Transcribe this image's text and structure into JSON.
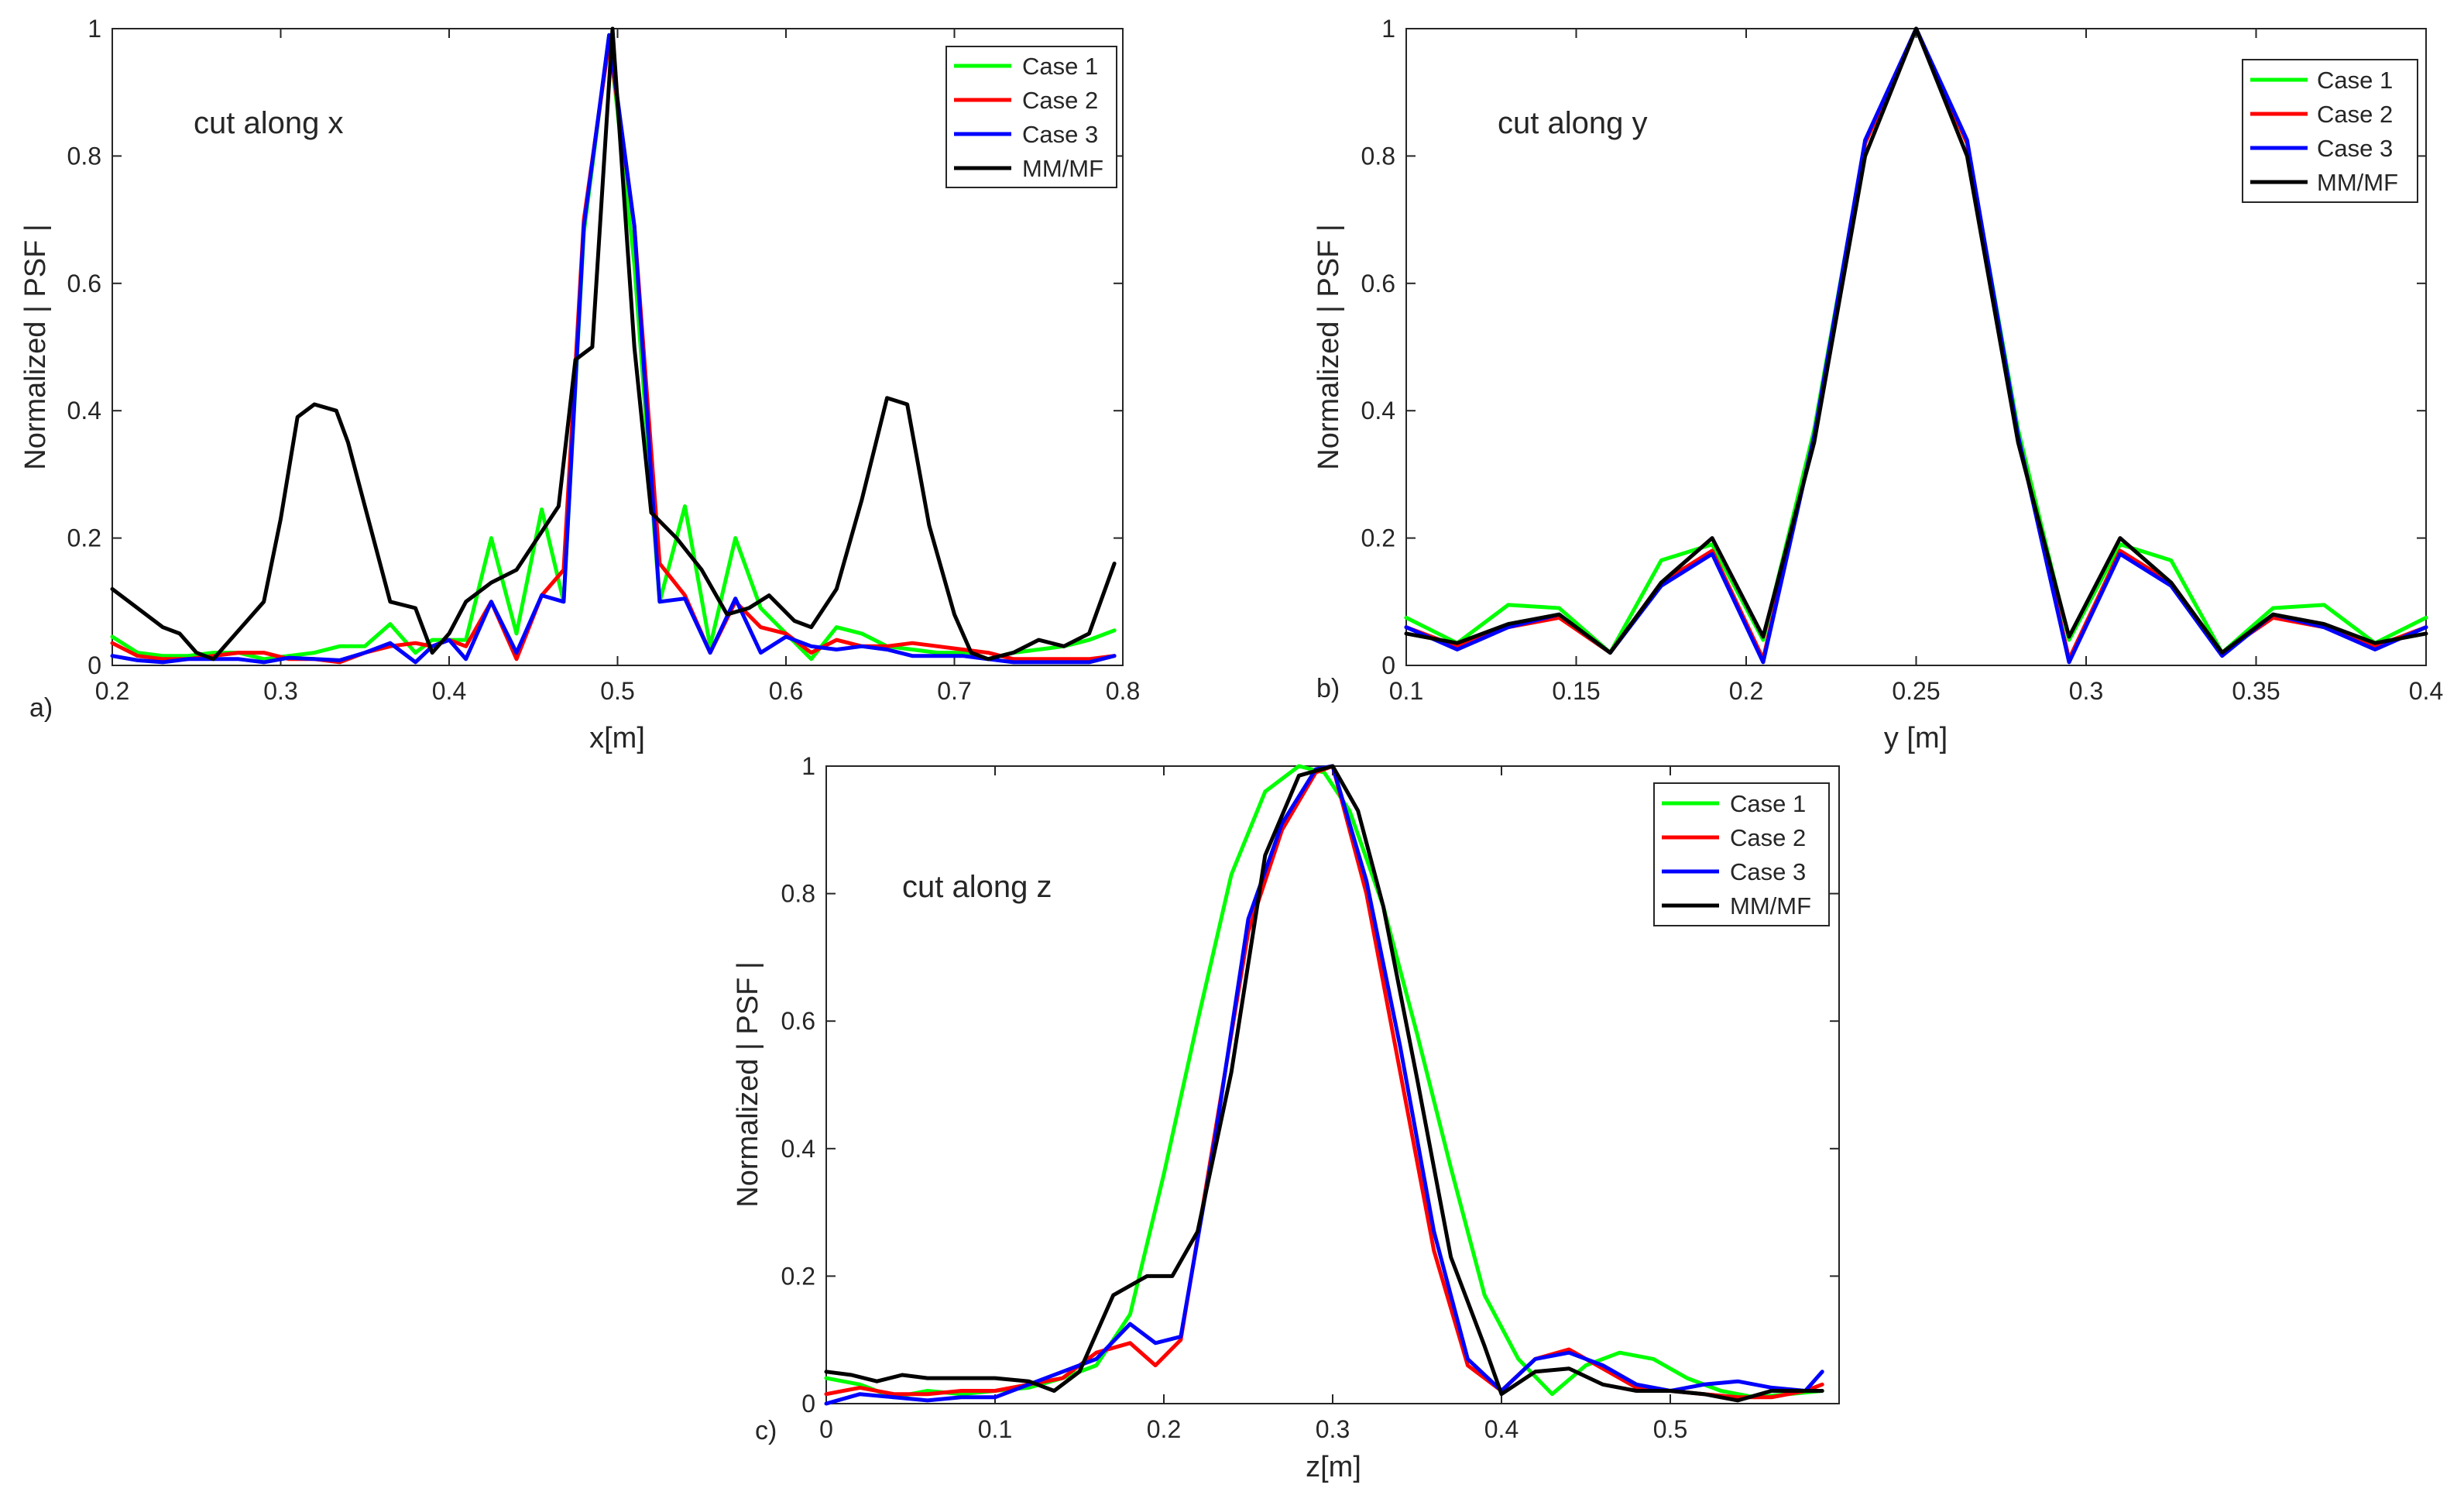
{
  "colors": {
    "case1": "#00ff00",
    "case2": "#ff0000",
    "case3": "#0000ff",
    "mmmf": "#000000"
  },
  "chart_data": [
    {
      "type": "line",
      "panel_label": "a)",
      "annotation": "cut along x",
      "xlabel": "x[m]",
      "ylabel": "Normalized | PSF |",
      "xlim": [
        0.2,
        0.8
      ],
      "ylim": [
        0,
        1
      ],
      "xticks": [
        0.2,
        0.3,
        0.4,
        0.5,
        0.6,
        0.7,
        0.8
      ],
      "xtick_labels": [
        "0.2",
        "0.3",
        "0.4",
        "0.5",
        "0.6",
        "0.7",
        "0.8"
      ],
      "yticks": [
        0,
        0.2,
        0.4,
        0.6,
        0.8,
        1
      ],
      "ytick_labels": [
        "0",
        "0.2",
        "0.4",
        "0.6",
        "0.8",
        "1"
      ],
      "legend": [
        "Case 1",
        "Case 2",
        "Case 3",
        "MM/MF"
      ],
      "series": [
        {
          "name": "Case 1",
          "color": "#00ff00",
          "x": [
            0.2,
            0.215,
            0.23,
            0.245,
            0.26,
            0.275,
            0.29,
            0.305,
            0.32,
            0.335,
            0.35,
            0.365,
            0.38,
            0.39,
            0.4,
            0.41,
            0.425,
            0.44,
            0.455,
            0.468,
            0.48,
            0.495,
            0.51,
            0.525,
            0.54,
            0.555,
            0.57,
            0.585,
            0.6,
            0.615,
            0.63,
            0.645,
            0.66,
            0.675,
            0.69,
            0.705,
            0.72,
            0.735,
            0.75,
            0.765,
            0.78,
            0.795
          ],
          "y": [
            0.045,
            0.02,
            0.015,
            0.015,
            0.02,
            0.02,
            0.01,
            0.015,
            0.02,
            0.03,
            0.03,
            0.065,
            0.02,
            0.04,
            0.04,
            0.04,
            0.2,
            0.05,
            0.245,
            0.1,
            0.68,
            0.99,
            0.63,
            0.1,
            0.25,
            0.03,
            0.2,
            0.09,
            0.05,
            0.01,
            0.06,
            0.05,
            0.03,
            0.025,
            0.02,
            0.02,
            0.01,
            0.02,
            0.025,
            0.03,
            0.04,
            0.055
          ]
        },
        {
          "name": "Case 2",
          "color": "#ff0000",
          "x": [
            0.2,
            0.215,
            0.23,
            0.245,
            0.26,
            0.275,
            0.29,
            0.305,
            0.32,
            0.335,
            0.35,
            0.365,
            0.38,
            0.39,
            0.4,
            0.41,
            0.425,
            0.44,
            0.455,
            0.468,
            0.48,
            0.495,
            0.51,
            0.525,
            0.54,
            0.555,
            0.57,
            0.585,
            0.6,
            0.615,
            0.63,
            0.645,
            0.66,
            0.675,
            0.69,
            0.705,
            0.72,
            0.735,
            0.75,
            0.765,
            0.78,
            0.795
          ],
          "y": [
            0.035,
            0.015,
            0.01,
            0.01,
            0.015,
            0.02,
            0.02,
            0.01,
            0.01,
            0.005,
            0.02,
            0.03,
            0.035,
            0.03,
            0.04,
            0.03,
            0.1,
            0.01,
            0.11,
            0.15,
            0.7,
            0.98,
            0.69,
            0.16,
            0.11,
            0.02,
            0.1,
            0.06,
            0.05,
            0.02,
            0.04,
            0.03,
            0.03,
            0.035,
            0.03,
            0.025,
            0.02,
            0.01,
            0.01,
            0.01,
            0.01,
            0.015
          ]
        },
        {
          "name": "Case 3",
          "color": "#0000ff",
          "x": [
            0.2,
            0.215,
            0.23,
            0.245,
            0.26,
            0.275,
            0.29,
            0.305,
            0.32,
            0.335,
            0.35,
            0.365,
            0.38,
            0.39,
            0.4,
            0.41,
            0.425,
            0.44,
            0.455,
            0.468,
            0.48,
            0.495,
            0.51,
            0.525,
            0.54,
            0.555,
            0.57,
            0.585,
            0.6,
            0.615,
            0.63,
            0.645,
            0.66,
            0.675,
            0.69,
            0.705,
            0.72,
            0.735,
            0.75,
            0.765,
            0.78,
            0.795
          ],
          "y": [
            0.015,
            0.008,
            0.005,
            0.01,
            0.01,
            0.01,
            0.005,
            0.012,
            0.01,
            0.008,
            0.02,
            0.035,
            0.005,
            0.03,
            0.04,
            0.01,
            0.1,
            0.02,
            0.11,
            0.1,
            0.69,
            0.99,
            0.69,
            0.1,
            0.105,
            0.02,
            0.105,
            0.02,
            0.045,
            0.03,
            0.025,
            0.03,
            0.025,
            0.015,
            0.015,
            0.015,
            0.01,
            0.005,
            0.005,
            0.005,
            0.005,
            0.015
          ]
        },
        {
          "name": "MM/MF",
          "color": "#000000",
          "x": [
            0.2,
            0.21,
            0.22,
            0.23,
            0.24,
            0.25,
            0.26,
            0.27,
            0.28,
            0.29,
            0.3,
            0.31,
            0.32,
            0.333,
            0.34,
            0.35,
            0.365,
            0.38,
            0.39,
            0.4,
            0.41,
            0.425,
            0.44,
            0.455,
            0.465,
            0.475,
            0.485,
            0.497,
            0.51,
            0.52,
            0.535,
            0.55,
            0.565,
            0.578,
            0.59,
            0.605,
            0.615,
            0.63,
            0.645,
            0.66,
            0.672,
            0.685,
            0.7,
            0.71,
            0.72,
            0.735,
            0.75,
            0.765,
            0.78,
            0.795
          ],
          "y": [
            0.12,
            0.1,
            0.08,
            0.06,
            0.05,
            0.02,
            0.01,
            0.04,
            0.07,
            0.1,
            0.23,
            0.39,
            0.41,
            0.4,
            0.35,
            0.25,
            0.1,
            0.09,
            0.02,
            0.05,
            0.1,
            0.13,
            0.15,
            0.21,
            0.25,
            0.48,
            0.5,
            1.0,
            0.5,
            0.24,
            0.2,
            0.15,
            0.08,
            0.09,
            0.11,
            0.07,
            0.06,
            0.12,
            0.26,
            0.42,
            0.41,
            0.22,
            0.08,
            0.02,
            0.01,
            0.02,
            0.04,
            0.03,
            0.05,
            0.16
          ]
        }
      ]
    },
    {
      "type": "line",
      "panel_label": "b)",
      "annotation": "cut along y",
      "xlabel": "y [m]",
      "ylabel": "Normalized | PSF |",
      "xlim": [
        0.1,
        0.4
      ],
      "ylim": [
        0,
        1
      ],
      "xticks": [
        0.1,
        0.15,
        0.2,
        0.25,
        0.3,
        0.35,
        0.4
      ],
      "xtick_labels": [
        "0.1",
        "0.15",
        "0.2",
        "0.25",
        "0.3",
        "0.35",
        "0.4"
      ],
      "yticks": [
        0,
        0.2,
        0.4,
        0.6,
        0.8,
        1
      ],
      "ytick_labels": [
        "0",
        "0.2",
        "0.4",
        "0.6",
        "0.8",
        "1"
      ],
      "legend": [
        "Case 1",
        "Case 2",
        "Case 3",
        "MM/MF"
      ],
      "series": [
        {
          "name": "Case 1",
          "color": "#00ff00",
          "x": [
            0.1,
            0.115,
            0.13,
            0.145,
            0.16,
            0.175,
            0.19,
            0.205,
            0.22,
            0.235,
            0.25,
            0.265,
            0.28,
            0.295,
            0.31,
            0.325,
            0.34,
            0.355,
            0.37,
            0.385,
            0.4
          ],
          "y": [
            0.075,
            0.035,
            0.095,
            0.09,
            0.02,
            0.165,
            0.19,
            0.04,
            0.37,
            0.82,
            1.0,
            0.82,
            0.37,
            0.04,
            0.19,
            0.165,
            0.02,
            0.09,
            0.095,
            0.035,
            0.075
          ]
        },
        {
          "name": "Case 2",
          "color": "#ff0000",
          "x": [
            0.1,
            0.115,
            0.13,
            0.145,
            0.16,
            0.175,
            0.19,
            0.205,
            0.22,
            0.235,
            0.25,
            0.265,
            0.28,
            0.295,
            0.31,
            0.325,
            0.34,
            0.355,
            0.37,
            0.385,
            0.4
          ],
          "y": [
            0.06,
            0.03,
            0.06,
            0.075,
            0.02,
            0.13,
            0.18,
            0.01,
            0.36,
            0.82,
            1.0,
            0.82,
            0.36,
            0.01,
            0.18,
            0.13,
            0.02,
            0.075,
            0.06,
            0.03,
            0.06
          ]
        },
        {
          "name": "Case 3",
          "color": "#0000ff",
          "x": [
            0.1,
            0.115,
            0.13,
            0.145,
            0.16,
            0.175,
            0.19,
            0.205,
            0.22,
            0.235,
            0.25,
            0.265,
            0.28,
            0.295,
            0.31,
            0.325,
            0.34,
            0.355,
            0.37,
            0.385,
            0.4
          ],
          "y": [
            0.06,
            0.025,
            0.06,
            0.08,
            0.02,
            0.125,
            0.175,
            0.005,
            0.36,
            0.825,
            1.0,
            0.825,
            0.36,
            0.005,
            0.175,
            0.125,
            0.015,
            0.08,
            0.06,
            0.025,
            0.06
          ]
        },
        {
          "name": "MM/MF",
          "color": "#000000",
          "x": [
            0.1,
            0.115,
            0.13,
            0.145,
            0.16,
            0.175,
            0.19,
            0.205,
            0.22,
            0.235,
            0.25,
            0.265,
            0.28,
            0.295,
            0.31,
            0.325,
            0.34,
            0.355,
            0.37,
            0.385,
            0.4
          ],
          "y": [
            0.05,
            0.035,
            0.065,
            0.08,
            0.02,
            0.13,
            0.2,
            0.045,
            0.35,
            0.8,
            1.0,
            0.8,
            0.35,
            0.045,
            0.2,
            0.13,
            0.02,
            0.08,
            0.065,
            0.035,
            0.05
          ]
        }
      ]
    },
    {
      "type": "line",
      "panel_label": "c)",
      "annotation": "cut along z",
      "xlabel": "z[m]",
      "ylabel": "Normalized | PSF |",
      "xlim": [
        0,
        0.6
      ],
      "ylim": [
        0,
        1
      ],
      "xticks": [
        0,
        0.1,
        0.2,
        0.3,
        0.4,
        0.5
      ],
      "xtick_labels": [
        "0",
        "0.1",
        "0.2",
        "0.3",
        "0.4",
        "0.5"
      ],
      "yticks": [
        0,
        0.2,
        0.4,
        0.6,
        0.8,
        1
      ],
      "ytick_labels": [
        "0",
        "0.2",
        "0.4",
        "0.6",
        "0.8",
        "1"
      ],
      "legend": [
        "Case 1",
        "Case 2",
        "Case 3",
        "MM/MF"
      ],
      "series": [
        {
          "name": "Case 1",
          "color": "#00ff00",
          "x": [
            0,
            0.02,
            0.04,
            0.06,
            0.08,
            0.1,
            0.12,
            0.14,
            0.16,
            0.18,
            0.2,
            0.22,
            0.24,
            0.26,
            0.28,
            0.295,
            0.31,
            0.33,
            0.35,
            0.37,
            0.39,
            0.41,
            0.43,
            0.45,
            0.47,
            0.49,
            0.51,
            0.53,
            0.55,
            0.57,
            0.59
          ],
          "y": [
            0.04,
            0.03,
            0.01,
            0.02,
            0.015,
            0.02,
            0.025,
            0.04,
            0.06,
            0.14,
            0.36,
            0.6,
            0.83,
            0.96,
            1.0,
            0.99,
            0.93,
            0.78,
            0.58,
            0.37,
            0.17,
            0.07,
            0.015,
            0.06,
            0.08,
            0.07,
            0.04,
            0.02,
            0.01,
            0.015,
            0.02
          ]
        },
        {
          "name": "Case 2",
          "color": "#ff0000",
          "x": [
            0,
            0.02,
            0.04,
            0.06,
            0.08,
            0.1,
            0.12,
            0.14,
            0.16,
            0.18,
            0.195,
            0.21,
            0.23,
            0.25,
            0.27,
            0.29,
            0.3,
            0.32,
            0.34,
            0.36,
            0.38,
            0.4,
            0.42,
            0.44,
            0.46,
            0.48,
            0.5,
            0.52,
            0.54,
            0.56,
            0.58,
            0.59
          ],
          "y": [
            0.015,
            0.025,
            0.015,
            0.015,
            0.02,
            0.02,
            0.03,
            0.04,
            0.08,
            0.095,
            0.06,
            0.1,
            0.42,
            0.74,
            0.9,
            0.99,
            1.0,
            0.8,
            0.52,
            0.24,
            0.06,
            0.02,
            0.07,
            0.085,
            0.055,
            0.025,
            0.02,
            0.015,
            0.01,
            0.01,
            0.02,
            0.03
          ]
        },
        {
          "name": "Case 3",
          "color": "#0000ff",
          "x": [
            0,
            0.02,
            0.04,
            0.06,
            0.08,
            0.1,
            0.12,
            0.14,
            0.16,
            0.18,
            0.195,
            0.21,
            0.23,
            0.25,
            0.27,
            0.29,
            0.3,
            0.32,
            0.34,
            0.36,
            0.38,
            0.4,
            0.42,
            0.44,
            0.46,
            0.48,
            0.5,
            0.52,
            0.54,
            0.56,
            0.58,
            0.59
          ],
          "y": [
            0.0,
            0.015,
            0.01,
            0.005,
            0.01,
            0.01,
            0.03,
            0.05,
            0.07,
            0.125,
            0.095,
            0.105,
            0.41,
            0.76,
            0.91,
            0.995,
            1.0,
            0.82,
            0.56,
            0.27,
            0.07,
            0.02,
            0.07,
            0.08,
            0.06,
            0.03,
            0.02,
            0.03,
            0.035,
            0.025,
            0.02,
            0.05
          ]
        },
        {
          "name": "MM/MF",
          "color": "#000000",
          "x": [
            0,
            0.015,
            0.03,
            0.045,
            0.06,
            0.08,
            0.1,
            0.12,
            0.135,
            0.15,
            0.17,
            0.19,
            0.205,
            0.22,
            0.24,
            0.26,
            0.28,
            0.3,
            0.315,
            0.33,
            0.35,
            0.37,
            0.39,
            0.4,
            0.42,
            0.44,
            0.46,
            0.48,
            0.5,
            0.52,
            0.54,
            0.56,
            0.58,
            0.59
          ],
          "y": [
            0.05,
            0.045,
            0.035,
            0.045,
            0.04,
            0.04,
            0.04,
            0.035,
            0.02,
            0.05,
            0.17,
            0.2,
            0.2,
            0.27,
            0.52,
            0.86,
            0.985,
            1.0,
            0.93,
            0.78,
            0.51,
            0.23,
            0.09,
            0.015,
            0.05,
            0.055,
            0.03,
            0.02,
            0.02,
            0.015,
            0.005,
            0.02,
            0.02,
            0.02
          ]
        }
      ]
    }
  ]
}
